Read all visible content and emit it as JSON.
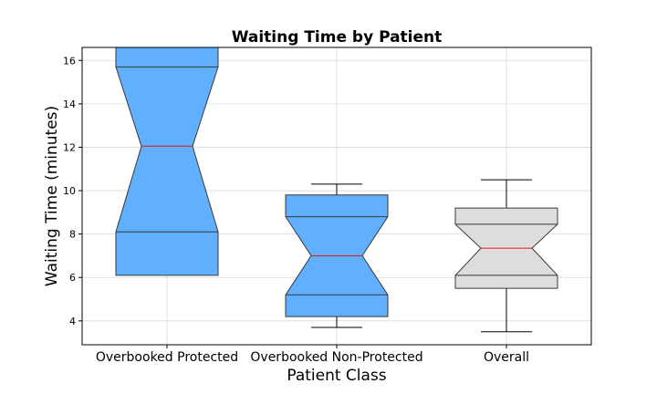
{
  "chart_data": {
    "type": "box",
    "title": "Waiting Time by Patient",
    "xlabel": "Patient Class",
    "ylabel": "Waiting Time (minutes)",
    "ylim": [
      2.9,
      16.6
    ],
    "yticks": [
      4,
      6,
      8,
      10,
      12,
      14,
      16
    ],
    "grid": true,
    "notched": true,
    "categories": [
      "Overbooked Protected",
      "Overbooked Non-Protected",
      "Overall"
    ],
    "boxes": [
      {
        "whisker_low": 6.7,
        "q1": 8.1,
        "notch_low": 6.1,
        "median": 12.05,
        "notch_high": 18.0,
        "q3": 15.7,
        "whisker_high": 16.0,
        "fill": "#61afff"
      },
      {
        "whisker_low": 3.7,
        "q1": 5.2,
        "notch_low": 4.2,
        "median": 7.0,
        "notch_high": 9.8,
        "q3": 8.8,
        "whisker_high": 10.3,
        "fill": "#61afff"
      },
      {
        "whisker_low": 3.5,
        "q1": 6.1,
        "notch_low": 5.5,
        "median": 7.35,
        "notch_high": 9.2,
        "q3": 8.45,
        "whisker_high": 10.5,
        "fill": "#dddddd"
      }
    ],
    "median_color": "#e8141c",
    "edge_color": "#3a3a3a"
  }
}
